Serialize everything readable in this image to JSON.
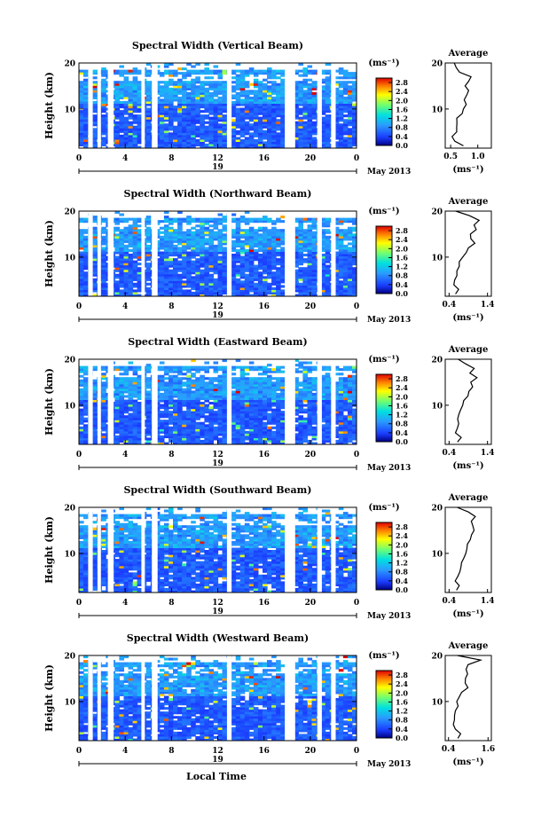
{
  "chart_data": {
    "type": "heatmap",
    "date_label": "May 2013",
    "day_label": "19",
    "xlabel": "Local Time",
    "ylabel": "Height (km)",
    "x_ticks": [
      "0",
      "4",
      "8",
      "12",
      "16",
      "20",
      "0"
    ],
    "xlim": [
      0,
      24
    ],
    "ylim": [
      1.5,
      20
    ],
    "y_ticks": [
      "20",
      "10"
    ],
    "colorbar_unit": "(ms⁻¹)",
    "colorbar_ticks": [
      "2.8",
      "2.4",
      "2.0",
      "1.6",
      "1.2",
      "0.8",
      "0.4",
      "0.0"
    ],
    "colorbar_range": [
      0.0,
      3.0
    ],
    "avg_title": "Average",
    "avg_unit": "(ms⁻¹)",
    "data_gaps_hours": [
      [
        0.8,
        1.2
      ],
      [
        1.6,
        1.9
      ],
      [
        2.5,
        3.0
      ],
      [
        5.4,
        5.7
      ],
      [
        6.3,
        6.8
      ],
      [
        12.8,
        13.2
      ],
      [
        17.8,
        18.7
      ],
      [
        20.6,
        21.0
      ],
      [
        21.8,
        22.2
      ]
    ],
    "panels": [
      {
        "title": "Spectral Width (Vertical Beam)",
        "avg_ticks": [
          "0.5",
          "1.0"
        ],
        "avg_xlim": [
          0.4,
          1.25
        ],
        "average_profile": {
          "height_km": [
            2,
            3,
            4,
            5,
            6,
            7,
            8,
            9,
            10,
            11,
            12,
            13,
            14,
            15,
            16,
            17,
            18,
            19,
            20
          ],
          "width_ms": [
            0.72,
            0.58,
            0.55,
            0.6,
            0.63,
            0.62,
            0.65,
            0.7,
            0.72,
            0.82,
            0.78,
            0.8,
            0.84,
            0.75,
            0.8,
            0.88,
            0.7,
            0.6,
            0.55
          ]
        }
      },
      {
        "title": "Spectral Width (Northward Beam)",
        "avg_ticks": [
          "0.4",
          "1.4"
        ],
        "avg_xlim": [
          0.3,
          1.5
        ],
        "average_profile": {
          "height_km": [
            2,
            3,
            4,
            5,
            6,
            7,
            8,
            9,
            10,
            11,
            12,
            13,
            14,
            15,
            16,
            17,
            18,
            19,
            20
          ],
          "width_ms": [
            0.55,
            0.65,
            0.52,
            0.58,
            0.62,
            0.64,
            0.66,
            0.7,
            0.75,
            0.82,
            0.9,
            1.05,
            1.0,
            0.95,
            1.12,
            1.05,
            1.2,
            0.9,
            0.6
          ]
        }
      },
      {
        "title": "Spectral Width (Eastward Beam)",
        "avg_ticks": [
          "0.4",
          "1.4"
        ],
        "avg_xlim": [
          0.3,
          1.5
        ],
        "average_profile": {
          "height_km": [
            2,
            3,
            4,
            5,
            6,
            7,
            8,
            9,
            10,
            11,
            12,
            13,
            14,
            15,
            16,
            17,
            18,
            19,
            20
          ],
          "width_ms": [
            0.6,
            0.75,
            0.6,
            0.58,
            0.62,
            0.66,
            0.68,
            0.7,
            0.72,
            0.78,
            0.88,
            0.95,
            1.05,
            1.0,
            1.1,
            0.98,
            1.05,
            0.85,
            0.6
          ]
        }
      },
      {
        "title": "Spectral Width (Southward Beam)",
        "avg_ticks": [
          "0.4",
          "1.4"
        ],
        "avg_xlim": [
          0.3,
          1.5
        ],
        "average_profile": {
          "height_km": [
            2,
            3,
            4,
            5,
            6,
            7,
            8,
            9,
            10,
            11,
            12,
            13,
            14,
            15,
            16,
            17,
            18,
            19,
            20
          ],
          "width_ms": [
            0.6,
            0.7,
            0.58,
            0.6,
            0.65,
            0.7,
            0.72,
            0.75,
            0.8,
            0.85,
            0.9,
            0.95,
            1.0,
            1.02,
            1.05,
            1.0,
            1.08,
            0.9,
            0.6
          ]
        }
      },
      {
        "title": "Spectral Width (Westward Beam)",
        "avg_ticks": [
          "0.4",
          "1.6"
        ],
        "avg_xlim": [
          0.3,
          1.7
        ],
        "average_profile": {
          "height_km": [
            2,
            3,
            4,
            5,
            6,
            7,
            8,
            9,
            10,
            11,
            12,
            13,
            14,
            15,
            16,
            17,
            18,
            19,
            20
          ],
          "width_ms": [
            0.65,
            0.75,
            0.6,
            0.58,
            0.6,
            0.62,
            0.64,
            0.66,
            0.68,
            0.72,
            0.8,
            0.95,
            0.92,
            0.88,
            0.95,
            0.9,
            1.0,
            1.4,
            0.7
          ]
        }
      }
    ]
  }
}
